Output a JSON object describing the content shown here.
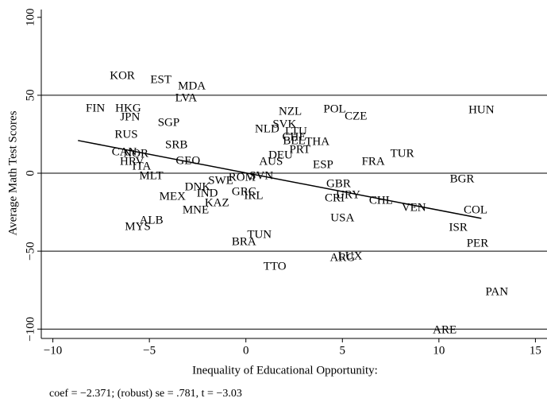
{
  "chart_data": {
    "type": "scatter",
    "y_label": "Average Math Test Scores",
    "x_label": "Inequality of Educational Opportunity:",
    "note": "coef = −2.371; (robust) se = .781, t = −3.03",
    "xlim": [
      -10.6,
      15.6
    ],
    "ylim": [
      -106,
      105
    ],
    "xticks": [
      {
        "value": -10,
        "label": "−10"
      },
      {
        "value": -5,
        "label": "−5"
      },
      0,
      5,
      10,
      15
    ],
    "yticks": [
      {
        "value": -100,
        "label": "−100"
      },
      {
        "value": -50,
        "label": "−50"
      },
      0,
      50,
      100
    ],
    "grid_lines": [
      -100,
      -50,
      0,
      50
    ],
    "color": "#000000",
    "labels": [
      "KOR",
      "EST",
      "MDA",
      "LVA",
      "FIN",
      "HKG",
      "HUN",
      "POL",
      "CZE",
      "NZL",
      "JPN",
      "SGP",
      "SVK",
      "NLD",
      "LTU",
      "CHE",
      "BEL",
      "THA",
      "RUS",
      "SRB",
      "CAN",
      "NOR",
      "PRT",
      "AUS",
      "DEU",
      "ESP",
      "FRA",
      "TUR",
      "BGR",
      "HRV",
      "ITA",
      "MLT",
      "GEO",
      "SWE",
      "ROM",
      "SVN",
      "DNK",
      "IND",
      "MEX",
      "GRC",
      "IRL",
      "KAZ",
      "MNE",
      "CRI",
      "URY",
      "GBR",
      "CHL",
      "VEN",
      "COL",
      "USA",
      "ALB",
      "MYS",
      "ISR",
      "TUN",
      "BRA",
      "PER",
      "ARG",
      "LUX",
      "TTO",
      "PAN",
      "ARE"
    ],
    "x": [
      -6.4,
      -4.4,
      -2.8,
      -3.1,
      -7.8,
      -6.1,
      12.2,
      4.6,
      5.7,
      2.3,
      -6.0,
      -4.0,
      2.0,
      1.1,
      2.6,
      2.5,
      2.5,
      3.7,
      -6.2,
      -3.6,
      -6.3,
      -5.7,
      2.8,
      1.3,
      1.8,
      4.0,
      6.6,
      8.1,
      11.2,
      -5.9,
      -5.4,
      -4.9,
      -3.0,
      -1.3,
      -0.2,
      0.8,
      -2.5,
      -2.0,
      -3.8,
      -0.1,
      0.4,
      -1.5,
      -2.6,
      4.6,
      5.3,
      4.8,
      7.0,
      8.7,
      11.9,
      5.0,
      -4.9,
      -5.6,
      11.0,
      0.7,
      -0.1,
      12.0,
      5.0,
      5.4,
      1.5,
      13.0,
      10.3
    ],
    "values": [
      62.2,
      59.7,
      55.6,
      48,
      41.3,
      41.3,
      40.3,
      40.8,
      36.2,
      39.3,
      35.7,
      32.1,
      31.1,
      28.1,
      26.5,
      23,
      20.4,
      19.9,
      24.5,
      17.9,
      13.3,
      12.2,
      14.8,
      7.1,
      11.2,
      5.1,
      7.1,
      12.2,
      -4.1,
      7.1,
      4.1,
      -2.0,
      7.7,
      -5.1,
      -3.1,
      -2.0,
      -9.2,
      -13.3,
      -15.3,
      -12.2,
      -14.8,
      -19.4,
      -24,
      -16.3,
      -14.3,
      -7.1,
      -17.9,
      -22.4,
      -24,
      -29.1,
      -30.6,
      -34.7,
      -35.2,
      -39.8,
      -44.4,
      -45.4,
      -54.6,
      -53.6,
      -60.2,
      -76.5,
      -101
    ],
    "fit_line": {
      "x": [
        -8.7,
        12.2
      ],
      "y": [
        21,
        -29
      ]
    }
  }
}
